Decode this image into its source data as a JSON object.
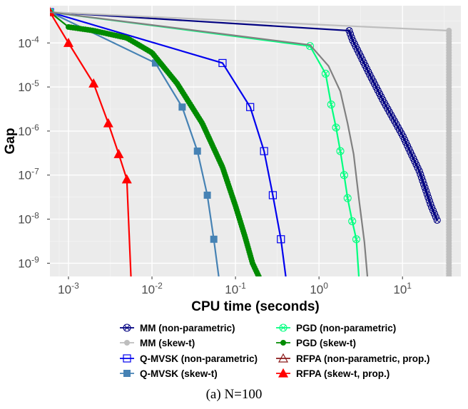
{
  "chart_data": {
    "type": "line",
    "xlabel": "CPU time (seconds)",
    "ylabel": "Gap",
    "xscale": "log",
    "yscale": "log",
    "xlim": [
      0.0006,
      50
    ],
    "ylim": [
      5e-10,
      0.0007
    ],
    "xticks": [
      0.001,
      0.01,
      0.1,
      1,
      10
    ],
    "xtick_labels": [
      {
        "base": "10",
        "exp": "-3"
      },
      {
        "base": "10",
        "exp": "-2"
      },
      {
        "base": "10",
        "exp": "-1"
      },
      {
        "base": "10",
        "exp": "0"
      },
      {
        "base": "10",
        "exp": "1"
      }
    ],
    "yticks": [
      1e-09,
      1e-08,
      1e-07,
      1e-06,
      1e-05,
      0.0001
    ],
    "ytick_labels": [
      {
        "base": "10",
        "exp": "-9"
      },
      {
        "base": "10",
        "exp": "-8"
      },
      {
        "base": "10",
        "exp": "-7"
      },
      {
        "base": "10",
        "exp": "-6"
      },
      {
        "base": "10",
        "exp": "-5"
      },
      {
        "base": "10",
        "exp": "-4"
      }
    ],
    "grid": true,
    "legend_position": "bottom",
    "series": [
      {
        "name": "MM (non-parametric)",
        "color": "#000080",
        "marker": "circle-open-cross",
        "dense": "hollow",
        "x": [
          0.0006,
          2.3,
          2.5,
          3.0,
          4.0,
          6.0,
          10.0,
          16.0,
          22.0,
          26.0
        ],
        "y": [
          0.0005,
          0.00019,
          0.00012,
          6e-05,
          2e-05,
          4.5e-06,
          8e-07,
          1.2e-07,
          2e-08,
          9.5e-09
        ]
      },
      {
        "name": "MM (skew-t)",
        "color": "#bebebe",
        "marker": "circle-filled",
        "dense": "vertical",
        "x": [
          0.0006,
          36.0
        ],
        "y": [
          0.0005,
          0.00019
        ]
      },
      {
        "name": "Q-MVSK (non-parametric)",
        "color": "#0000ee",
        "marker": "square-open",
        "x": [
          0.0006,
          0.07,
          0.15,
          0.22,
          0.28,
          0.35,
          0.4
        ],
        "y": [
          0.0005,
          3.5e-05,
          3.5e-06,
          3.5e-07,
          3.5e-08,
          3.5e-09,
          5e-10
        ]
      },
      {
        "name": "Q-MVSK (skew-t)",
        "color": "#4682b4",
        "marker": "square-filled",
        "x": [
          0.0006,
          0.011,
          0.023,
          0.035,
          0.046,
          0.055,
          0.063
        ],
        "y": [
          0.0005,
          3.5e-05,
          3.5e-06,
          3.5e-07,
          3.5e-08,
          3.5e-09,
          5e-10
        ]
      },
      {
        "name": "PGD (non-parametric)",
        "color": "#00ff7f",
        "marker": "circle-open-cross",
        "x": [
          0.0006,
          0.78,
          1.2,
          1.4,
          1.6,
          1.8,
          2.0,
          2.2,
          2.5,
          2.8,
          3.0
        ],
        "y": [
          0.0005,
          8.5e-05,
          2e-05,
          4e-06,
          1.2e-06,
          3.5e-07,
          1e-07,
          3e-08,
          9e-09,
          3.5e-09,
          5e-10
        ]
      },
      {
        "name": "PGD (skew-t)",
        "color": "#008b00",
        "marker": "circle-filled",
        "dense": "filled",
        "x": [
          0.0006,
          0.001,
          0.002,
          0.005,
          0.01,
          0.02,
          0.04,
          0.07,
          0.1,
          0.13,
          0.16,
          0.19
        ],
        "y": [
          0.0005,
          0.00023,
          0.00019,
          0.00013,
          6e-05,
          1.2e-05,
          1.5e-06,
          1.5e-07,
          2e-08,
          4e-09,
          1e-09,
          5e-10
        ]
      },
      {
        "name": "RFPA (non-parametric, prop.)",
        "color": "#8b1a1a",
        "marker": "triangle-open",
        "visible": false,
        "x": [
          0.0006,
          0.001,
          0.002,
          0.003,
          0.004,
          0.005,
          0.0056
        ],
        "y": [
          0.0005,
          0.0001,
          1.2e-05,
          1.5e-06,
          3e-07,
          8e-08,
          5e-10
        ]
      },
      {
        "name": "RFPA (skew-t, prop.)",
        "color": "#ff0000",
        "marker": "triangle-filled",
        "x": [
          0.0006,
          0.001,
          0.002,
          0.003,
          0.004,
          0.005,
          0.0056
        ],
        "y": [
          0.0005,
          0.0001,
          1.2e-05,
          1.5e-06,
          3e-07,
          8e-08,
          5e-10
        ]
      },
      {
        "name": "",
        "color": "#808080",
        "marker": "none",
        "x": [
          0.0006,
          0.78,
          1.3,
          1.8,
          2.2,
          2.6,
          3.0,
          3.5,
          3.8
        ],
        "y": [
          0.0005,
          9e-05,
          3e-05,
          8e-06,
          1.5e-06,
          3e-07,
          3e-08,
          3e-09,
          5e-10
        ]
      }
    ]
  },
  "caption": "(a) N=100"
}
